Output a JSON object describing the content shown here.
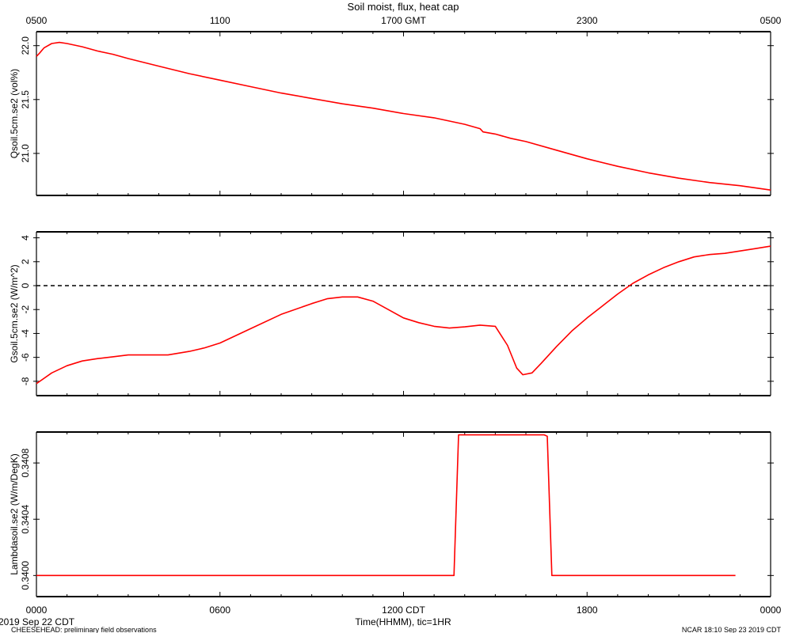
{
  "title": "Soil moist, flux, heat cap",
  "top_axis": {
    "tick_labels": [
      "0500",
      "1100",
      "1700 GMT",
      "2300",
      "0500"
    ]
  },
  "bottom_axis": {
    "tick_labels": [
      "0000",
      "0600",
      "1200 CDT",
      "1800",
      "0000"
    ],
    "label": "Time(HHMM), tic=1HR"
  },
  "footer": {
    "date_left": "2019 Sep 22 CDT",
    "project": "CHEESEHEAD: preliminary field observations",
    "stamp": "NCAR 18:10 Sep 23 2019 CDT"
  },
  "colors": {
    "series": "#ff0000",
    "axes": "#000000"
  },
  "chart_data": [
    {
      "type": "line",
      "ylabel": "Qsoil.5cm.se2 (vol%)",
      "x_unit": "hours since 0000 CDT",
      "xlim": [
        0,
        24
      ],
      "ylim": [
        20.61,
        22.13
      ],
      "yticks": [
        21.0,
        21.5,
        22.0
      ],
      "ytick_labels": [
        "21.0",
        "21.5",
        "22.0"
      ],
      "x": [
        0,
        0.1,
        0.25,
        0.5,
        0.75,
        1,
        1.5,
        2,
        2.5,
        3,
        4,
        5,
        6,
        7,
        8,
        9,
        10,
        11,
        12,
        13,
        14,
        14.5,
        14.6,
        15,
        15.5,
        16,
        17,
        18,
        19,
        20,
        21,
        22,
        23,
        24
      ],
      "values": [
        21.9,
        21.93,
        21.98,
        22.02,
        22.03,
        22.02,
        21.99,
        21.95,
        21.92,
        21.88,
        21.81,
        21.74,
        21.68,
        21.62,
        21.56,
        21.51,
        21.46,
        21.42,
        21.37,
        21.33,
        21.27,
        21.23,
        21.2,
        21.18,
        21.14,
        21.11,
        21.03,
        20.95,
        20.88,
        20.82,
        20.77,
        20.73,
        20.7,
        20.66
      ]
    },
    {
      "type": "line",
      "ylabel": "Gsoil.5cm.se2 (W/m^2)",
      "x_unit": "hours since 0000 CDT",
      "xlim": [
        0,
        24
      ],
      "ylim": [
        -9.2,
        4.5
      ],
      "yticks": [
        -8,
        -6,
        -4,
        -2,
        0,
        2,
        4
      ],
      "ytick_labels": [
        "-8",
        "-6",
        "-4",
        "-2",
        "0",
        "2",
        "4"
      ],
      "reference_line": {
        "y": 0,
        "style": "dashed"
      },
      "x": [
        0,
        0.5,
        1,
        1.5,
        2,
        2.5,
        3,
        3.5,
        4,
        4.3,
        5,
        5.5,
        6,
        7,
        8,
        9,
        9.5,
        10,
        10.5,
        11,
        11.5,
        12,
        12.5,
        13,
        13.5,
        14,
        14.5,
        15,
        15.4,
        15.7,
        15.9,
        16.2,
        16.5,
        17,
        17.5,
        18,
        18.5,
        19,
        19.5,
        20,
        20.5,
        21,
        21.5,
        22,
        22.5,
        23,
        23.5,
        24
      ],
      "values": [
        -8.2,
        -7.3,
        -6.7,
        -6.3,
        -6.1,
        -5.95,
        -5.8,
        -5.8,
        -5.8,
        -5.8,
        -5.5,
        -5.2,
        -4.8,
        -3.6,
        -2.4,
        -1.5,
        -1.1,
        -0.95,
        -0.95,
        -1.3,
        -2.0,
        -2.7,
        -3.1,
        -3.4,
        -3.55,
        -3.45,
        -3.3,
        -3.4,
        -5.0,
        -6.9,
        -7.45,
        -7.3,
        -6.5,
        -5.1,
        -3.8,
        -2.7,
        -1.7,
        -0.7,
        0.2,
        0.9,
        1.5,
        2.0,
        2.4,
        2.6,
        2.7,
        2.9,
        3.1,
        3.3
      ]
    },
    {
      "type": "line",
      "ylabel": "Lambdasoil.se2 (W/m/DegK)",
      "x_unit": "hours since 0000 CDT",
      "xlim": [
        0,
        24
      ],
      "ylim": [
        0.33985,
        0.34102
      ],
      "yticks": [
        0.34,
        0.3404,
        0.3408
      ],
      "ytick_labels": [
        "0.3400",
        "0.3404",
        "0.3408"
      ],
      "x": [
        0,
        13.65,
        13.8,
        16.6,
        16.7,
        16.85,
        22.85
      ],
      "values": [
        0.34,
        0.34,
        0.341,
        0.341,
        0.34099,
        0.34,
        0.34
      ]
    }
  ]
}
